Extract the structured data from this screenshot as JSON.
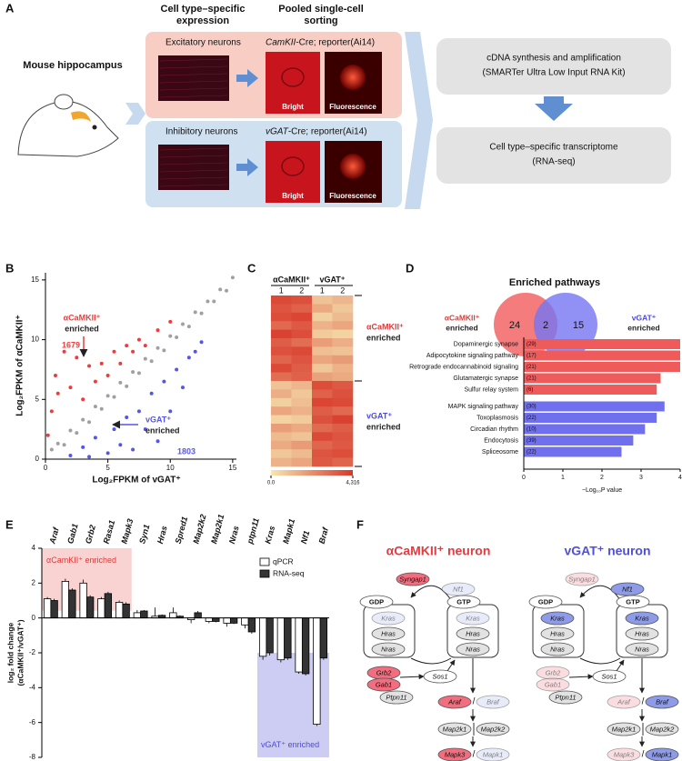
{
  "panel_a": {
    "label": "A",
    "source": "Mouse hippocampus",
    "col1": [
      "Cell type–specific",
      "expression"
    ],
    "col2": [
      "Pooled single-cell",
      "sorting"
    ],
    "rows": [
      {
        "name": "Excitatory neurons",
        "driver": "CamKII",
        "driver_suffix": "-Cre; reporter(Ai14)",
        "bright": "Bright",
        "fluor": "Fluorescence"
      },
      {
        "name": "Inhibitory neurons",
        "driver": "vGAT",
        "driver_suffix": "-Cre; reporter(Ai14)",
        "bright": "Bright",
        "fluor": "Fluorescence"
      }
    ],
    "steps": [
      [
        "cDNA synthesis and amplification",
        "(SMARTer Ultra Low Input RNA Kit)"
      ],
      [
        "Cell type–specific transcriptome",
        "(RNA-seq)"
      ]
    ]
  },
  "chart_data": [
    {
      "type": "scatter",
      "panel": "B",
      "xlabel": "Log₂FPKM of vGAT⁺",
      "ylabel": "Log₂FPKM of αCaMKII⁺",
      "xlim": [
        0,
        15.3
      ],
      "ylim": [
        0,
        15.6
      ],
      "xticks": [
        0,
        5,
        10,
        15
      ],
      "yticks": [
        0,
        5,
        10,
        15
      ],
      "series": [
        {
          "color": "#a0a0a0",
          "x": [
            0.5,
            1,
            1.5,
            2,
            2.5,
            3,
            3.5,
            4,
            4.5,
            5,
            5.5,
            6,
            6.5,
            7,
            7.5,
            8,
            8.5,
            9,
            9.5,
            10,
            10.5,
            11,
            11.5,
            12,
            12.5,
            13,
            13.5,
            14,
            14.5,
            15
          ],
          "values": [
            0.8,
            1.3,
            1.2,
            2.4,
            2.2,
            3.3,
            3.1,
            4.4,
            4.2,
            5.3,
            5.2,
            6.4,
            6.1,
            7.3,
            7.2,
            8.4,
            8.2,
            9.3,
            9.1,
            10.3,
            10.2,
            11.3,
            11.1,
            12.3,
            12.2,
            13.2,
            13.2,
            14.2,
            14.1,
            15.2
          ]
        },
        {
          "color": "#ef3b3b",
          "x": [
            0.2,
            0.5,
            0.8,
            1,
            1.5,
            2,
            2.5,
            3,
            3.5,
            4,
            4.5,
            5,
            5.5,
            6,
            6.5,
            7,
            7.5,
            8,
            9,
            10
          ],
          "values": [
            2,
            4,
            7,
            5.5,
            9,
            6,
            8.5,
            5,
            7.8,
            6.5,
            8,
            7,
            9,
            8,
            9.5,
            9,
            10,
            9.5,
            10.8,
            11.5
          ]
        },
        {
          "color": "#5555e8",
          "x": [
            2,
            3,
            3.5,
            4,
            5,
            5.5,
            6,
            6.5,
            7,
            7.5,
            8,
            8.5,
            9,
            9.5,
            10,
            10.5,
            11,
            11.5,
            12,
            12.5
          ],
          "values": [
            0.3,
            1,
            0.2,
            1.8,
            0.5,
            2.5,
            1.2,
            3.5,
            0.8,
            4,
            2.5,
            5.5,
            1.5,
            6.5,
            4,
            7.5,
            6,
            8.5,
            9,
            9.8
          ]
        }
      ],
      "annotations": [
        {
          "lines": [
            "αCaMKII⁺",
            "enriched"
          ],
          "count": 1679,
          "color": "#ef3b3b"
        },
        {
          "lines": [
            "vGAT⁺",
            "enriched"
          ],
          "count": 1803,
          "color": "#5555e8"
        }
      ]
    },
    {
      "type": "heatmap",
      "panel": "C",
      "column_groups": [
        "αCaMKII⁺",
        "vGAT⁺"
      ],
      "columns": [
        "1",
        "2",
        "1",
        "2"
      ],
      "row_groups": [
        {
          "lines": [
            "αCaMKII⁺",
            "enriched"
          ]
        },
        {
          "lines": [
            "vGAT⁺",
            "enriched"
          ]
        }
      ],
      "colorbar_ticks": [
        {
          "value": 0,
          "label": "0.0"
        },
        {
          "value": 4316,
          "label": "4,316"
        }
      ],
      "matrix": [
        [
          3900,
          3700,
          900,
          1200
        ],
        [
          3600,
          3300,
          1500,
          800
        ],
        [
          3800,
          4000,
          600,
          1100
        ],
        [
          3100,
          3500,
          1300,
          1600
        ],
        [
          4100,
          3800,
          700,
          500
        ],
        [
          3400,
          3000,
          1800,
          1400
        ],
        [
          3700,
          3900,
          1000,
          900
        ],
        [
          3200,
          3600,
          1600,
          1900
        ],
        [
          3900,
          3400,
          800,
          1300
        ],
        [
          3000,
          3300,
          1700,
          1500
        ],
        [
          900,
          1200,
          3800,
          3500
        ],
        [
          1400,
          800,
          3300,
          3700
        ],
        [
          600,
          1000,
          4000,
          3900
        ],
        [
          1600,
          1300,
          3400,
          3100
        ],
        [
          500,
          700,
          3700,
          4100
        ],
        [
          1800,
          1500,
          3100,
          3400
        ],
        [
          1100,
          900,
          3900,
          3600
        ],
        [
          1500,
          1900,
          3200,
          3500
        ],
        [
          800,
          1100,
          3600,
          3800
        ],
        [
          1300,
          1600,
          3500,
          3200
        ]
      ]
    },
    {
      "type": "venn",
      "panel": "D",
      "title": "Enriched pathways",
      "sets": [
        {
          "lines": [
            "αCaMKII⁺",
            "enriched"
          ],
          "color": "#f26565"
        },
        {
          "lines": [
            "vGAT⁺",
            "enriched"
          ],
          "color": "#7474f2"
        }
      ],
      "values": [
        24,
        2,
        15
      ]
    },
    {
      "type": "barh",
      "xlabel": "−Log₁₀P value",
      "xlim": [
        0,
        4
      ],
      "xticks": [
        0,
        1,
        2,
        3,
        4
      ],
      "categories": [
        "Dopaminergic synapse",
        "Adipocytokine signaling pathway",
        "Retrograde endocannabinoid signaling",
        "Glutamatergic synapse",
        "Sulfur relay system",
        "MAPK signaling pathway",
        "Toxoplasmosis",
        "Circadian rhythm",
        "Endocytosis",
        "Spliceosome"
      ],
      "values": [
        4,
        4,
        4,
        3.5,
        3.4,
        3.6,
        3.4,
        3.1,
        2.8,
        2.5
      ],
      "counts": [
        "(29)",
        "(17)",
        "(21)",
        "(21)",
        "(6)",
        "(30)",
        "(22)",
        "(10)",
        "(39)",
        "(22)"
      ],
      "colors": [
        "#ef5b5b",
        "#ef5b5b",
        "#ef5b5b",
        "#ef5b5b",
        "#ef5b5b",
        "#7070ee",
        "#7070ee",
        "#7070ee",
        "#7070ee",
        "#7070ee"
      ]
    },
    {
      "type": "bar",
      "panel": "E",
      "ylabel": [
        "log₂ fold change",
        "(αCaMKII⁺/vGAT⁺)"
      ],
      "ylim": [
        -8,
        4
      ],
      "yticks": [
        -8,
        -6,
        -4,
        -2,
        0,
        2,
        4
      ],
      "categories": [
        "Araf",
        "Gab1",
        "Grb2",
        "Rasa1",
        "Mapk3",
        "Syn1",
        "Hras",
        "Spred1",
        "Map2k2",
        "Map2k1",
        "Nras",
        "ptpn11",
        "Kras",
        "Mapk1",
        "Nf1",
        "Braf"
      ],
      "series": [
        {
          "name": "qPCR",
          "color": "#ffffff",
          "values": [
            1.1,
            2.1,
            2.0,
            1.1,
            0.9,
            0.3,
            0.1,
            0.3,
            -0.1,
            -0.2,
            -0.3,
            -0.4,
            -2.2,
            -2.4,
            -3.1,
            -6.1
          ],
          "errors": [
            0.1,
            0.15,
            0.2,
            0.1,
            0.1,
            0.15,
            0.5,
            0.3,
            0.2,
            0.1,
            0.2,
            0.2,
            0.2,
            0.15,
            0.1,
            0.1
          ]
        },
        {
          "name": "RNA-seq",
          "color": "#333333",
          "values": [
            1.0,
            1.6,
            1.2,
            1.4,
            0.8,
            0.4,
            0.15,
            0.1,
            0.3,
            -0.2,
            -0.3,
            -0.8,
            -2.0,
            -2.3,
            -3.2,
            -2.3
          ],
          "errors": [
            0.1,
            0.1,
            0.1,
            0.1,
            0.1,
            0.05,
            0.05,
            0.05,
            0.1,
            0.05,
            0.05,
            0.1,
            0.15,
            0.1,
            0.1,
            0.1
          ]
        }
      ],
      "regions": [
        {
          "label": "αCamKII⁺ enriched",
          "color": "#f9d2d2",
          "text_color": "#e03a3a"
        },
        {
          "label": "vGAT⁺ enriched",
          "color": "#cdcdf3",
          "text_color": "#4a4ae0"
        }
      ]
    }
  ],
  "panel_f": {
    "label": "F",
    "diagrams": [
      {
        "title": "αCaMKII⁺ neuron",
        "color": "#e8393f",
        "separator": "/",
        "nodes": [
          {
            "label": "GDP",
            "fill": "#ffffff",
            "faded": false
          },
          {
            "label": "Kras",
            "fill": "#d6dcf5",
            "faded": true
          },
          {
            "label": "Hras",
            "fill": "#e2e2e2",
            "faded": false
          },
          {
            "label": "Nras",
            "fill": "#e2e2e2",
            "faded": false
          },
          {
            "label": "GTP",
            "fill": "#ffffff",
            "faded": false
          },
          {
            "label": "Kras",
            "fill": "#d6dcf5",
            "faded": true
          },
          {
            "label": "Hras",
            "fill": "#e2e2e2",
            "faded": false
          },
          {
            "label": "Nras",
            "fill": "#e2e2e2",
            "faded": false
          },
          {
            "label": "Syngap1",
            "fill": "#f26d7d",
            "faded": false
          },
          {
            "label": "Nf1",
            "fill": "#d6dcf5",
            "faded": true
          },
          {
            "label": "Grb2",
            "fill": "#f26d7d",
            "faded": false
          },
          {
            "label": "Gab1",
            "fill": "#f26d7d",
            "faded": false
          },
          {
            "label": "Ptpn11",
            "fill": "#e2e2e2",
            "faded": false
          },
          {
            "label": "Sos1",
            "fill": "#ffffff",
            "faded": false
          },
          {
            "label": "Araf",
            "fill": "#f26d7d",
            "faded": false
          },
          {
            "label": "Braf",
            "fill": "#d6dcf5",
            "faded": true
          },
          {
            "label": "Map2k1",
            "fill": "#e2e2e2",
            "faded": false
          },
          {
            "label": "Map2k2",
            "fill": "#e2e2e2",
            "faded": false
          },
          {
            "label": "Mapk3",
            "fill": "#f26d7d",
            "faded": false
          },
          {
            "label": "Mapk1",
            "fill": "#d6dcf5",
            "faded": true
          }
        ]
      },
      {
        "title": "vGAT⁺ neuron",
        "color": "#4f4fe0",
        "separator": "/",
        "nodes": [
          {
            "label": "GDP",
            "fill": "#ffffff",
            "faded": false
          },
          {
            "label": "Kras",
            "fill": "#8d9be8",
            "faded": false
          },
          {
            "label": "Hras",
            "fill": "#e2e2e2",
            "faded": false
          },
          {
            "label": "Nras",
            "fill": "#e2e2e2",
            "faded": false
          },
          {
            "label": "GTP",
            "fill": "#ffffff",
            "faded": false
          },
          {
            "label": "Kras",
            "fill": "#8d9be8",
            "faded": false
          },
          {
            "label": "Hras",
            "fill": "#e2e2e2",
            "faded": false
          },
          {
            "label": "Nras",
            "fill": "#e2e2e2",
            "faded": false
          },
          {
            "label": "Syngap1",
            "fill": "#f8c2c8",
            "faded": true
          },
          {
            "label": "Nf1",
            "fill": "#8d9be8",
            "faded": false
          },
          {
            "label": "Grb2",
            "fill": "#f8c2c8",
            "faded": true
          },
          {
            "label": "Gab1",
            "fill": "#f8c2c8",
            "faded": true
          },
          {
            "label": "Ptpn11",
            "fill": "#e2e2e2",
            "faded": false
          },
          {
            "label": "Sos1",
            "fill": "#ffffff",
            "faded": false
          },
          {
            "label": "Araf",
            "fill": "#f8c2c8",
            "faded": true
          },
          {
            "label": "Braf",
            "fill": "#8d9be8",
            "faded": false
          },
          {
            "label": "Map2k1",
            "fill": "#e2e2e2",
            "faded": false
          },
          {
            "label": "Map2k2",
            "fill": "#e2e2e2",
            "faded": false
          },
          {
            "label": "Mapk3",
            "fill": "#f8c2c8",
            "faded": true
          },
          {
            "label": "Mapk1",
            "fill": "#8d9be8",
            "faded": false
          }
        ]
      }
    ]
  }
}
